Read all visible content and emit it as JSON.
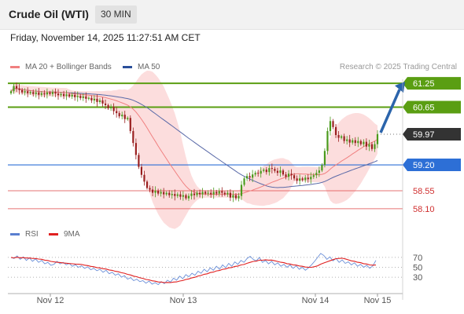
{
  "header": {
    "title": "Crude Oil (WTI)",
    "interval": "30 MIN"
  },
  "timestamp": "Friday, November 14, 2025 11:27:51 AM CET",
  "legend": {
    "ma20": "MA 20 + Bollinger Bands",
    "ma50": "MA 50",
    "credit": "Research © 2025 Trading Central"
  },
  "rsi_legend": {
    "rsi": "RSI",
    "ma": "9MA"
  },
  "colors": {
    "green_level": "#5a9e12",
    "blue_level": "#2d6fd6",
    "red_level": "#e05050",
    "current_price_bg": "#333333",
    "candle_up": "#4a9a1c",
    "candle_down": "#9a1f1f",
    "ma20": "#f08080",
    "ma50": "#5a6aa8",
    "band_fill": "#fbd2d2",
    "rsi_line": "#6a8fd8",
    "rsi_ma": "#e02020",
    "arrow": "#2b64ab"
  },
  "chart_data": [
    {
      "type": "candlestick",
      "x_labels": [
        "Nov 12",
        "Nov 13",
        "Nov 14",
        "Nov 15"
      ],
      "ylim": [
        57.9,
        61.35
      ],
      "price_levels": [
        {
          "value": 61.25,
          "label": "61.25",
          "kind": "resistance"
        },
        {
          "value": 60.65,
          "label": "60.65",
          "kind": "resistance"
        },
        {
          "value": 59.97,
          "label": "59.97",
          "kind": "current"
        },
        {
          "value": 59.2,
          "label": "59.20",
          "kind": "pivot"
        },
        {
          "value": 58.55,
          "label": "58.55",
          "kind": "support"
        },
        {
          "value": 58.1,
          "label": "58.10",
          "kind": "support"
        }
      ],
      "close": [
        61.05,
        61.18,
        61.12,
        61.08,
        61.02,
        61.05,
        61.0,
        61.03,
        60.98,
        61.02,
        60.96,
        61.0,
        60.97,
        61.02,
        60.98,
        61.03,
        60.99,
        60.95,
        60.98,
        60.93,
        60.97,
        60.92,
        60.96,
        60.9,
        60.93,
        60.88,
        60.92,
        60.86,
        60.88,
        60.82,
        60.86,
        60.78,
        60.82,
        60.74,
        60.7,
        60.62,
        60.66,
        60.55,
        60.5,
        60.42,
        60.46,
        60.35,
        60.38,
        60.05,
        59.75,
        59.45,
        59.15,
        58.95,
        58.78,
        58.62,
        58.58,
        58.5,
        58.55,
        58.48,
        58.52,
        58.46,
        58.5,
        58.44,
        58.47,
        58.42,
        58.46,
        58.4,
        58.44,
        58.36,
        58.42,
        58.48,
        58.44,
        58.5,
        58.46,
        58.52,
        58.48,
        58.5,
        58.46,
        58.52,
        58.48,
        58.54,
        58.5,
        58.46,
        58.5,
        58.38,
        58.44,
        58.36,
        58.42,
        58.7,
        58.86,
        58.92,
        58.88,
        58.96,
        59.0,
        58.98,
        59.05,
        59.08,
        59.02,
        59.12,
        59.1,
        59.05,
        59.0,
        59.06,
        58.96,
        58.9,
        58.98,
        58.94,
        58.86,
        58.8,
        58.86,
        58.82,
        58.88,
        58.84,
        58.9,
        58.94,
        59.0,
        59.06,
        59.2,
        59.55,
        60.05,
        60.3,
        60.15,
        59.95,
        59.88,
        59.92,
        59.8,
        59.84,
        59.76,
        59.82,
        59.75,
        59.8,
        59.72,
        59.78,
        59.66,
        59.72,
        59.6,
        59.72,
        59.97
      ],
      "series": [
        {
          "name": "MA 20 + Bollinger Bands"
        },
        {
          "name": "MA 50"
        }
      ]
    },
    {
      "type": "line",
      "ylim": [
        0,
        100
      ],
      "y_ticks": [
        30,
        50,
        70
      ],
      "series": [
        {
          "name": "RSI",
          "values": [
            70,
            68,
            73,
            66,
            71,
            64,
            69,
            62,
            67,
            60,
            64,
            57,
            60,
            54,
            56,
            62,
            57,
            60,
            55,
            58,
            52,
            55,
            50,
            53,
            48,
            51,
            45,
            48,
            43,
            46,
            40,
            44,
            37,
            40,
            34,
            37,
            30,
            33,
            26,
            29,
            23,
            26,
            21,
            23,
            18,
            22,
            16,
            19,
            15,
            21,
            17,
            24,
            20,
            28,
            24,
            32,
            27,
            35,
            31,
            38,
            34,
            42,
            38,
            46,
            41,
            49,
            44,
            52,
            46,
            55,
            49,
            58,
            52,
            61,
            56,
            64,
            60,
            68,
            72,
            66,
            63,
            70,
            60,
            64,
            57,
            62,
            55,
            59,
            52,
            56,
            50,
            55,
            48,
            53,
            46,
            50,
            44,
            49,
            55,
            62,
            70,
            78,
            74,
            66,
            71,
            63,
            68,
            60,
            65,
            58,
            61,
            55,
            59,
            52,
            56,
            50,
            54,
            48,
            53,
            64
          ]
        },
        {
          "name": "9MA"
        }
      ]
    }
  ]
}
